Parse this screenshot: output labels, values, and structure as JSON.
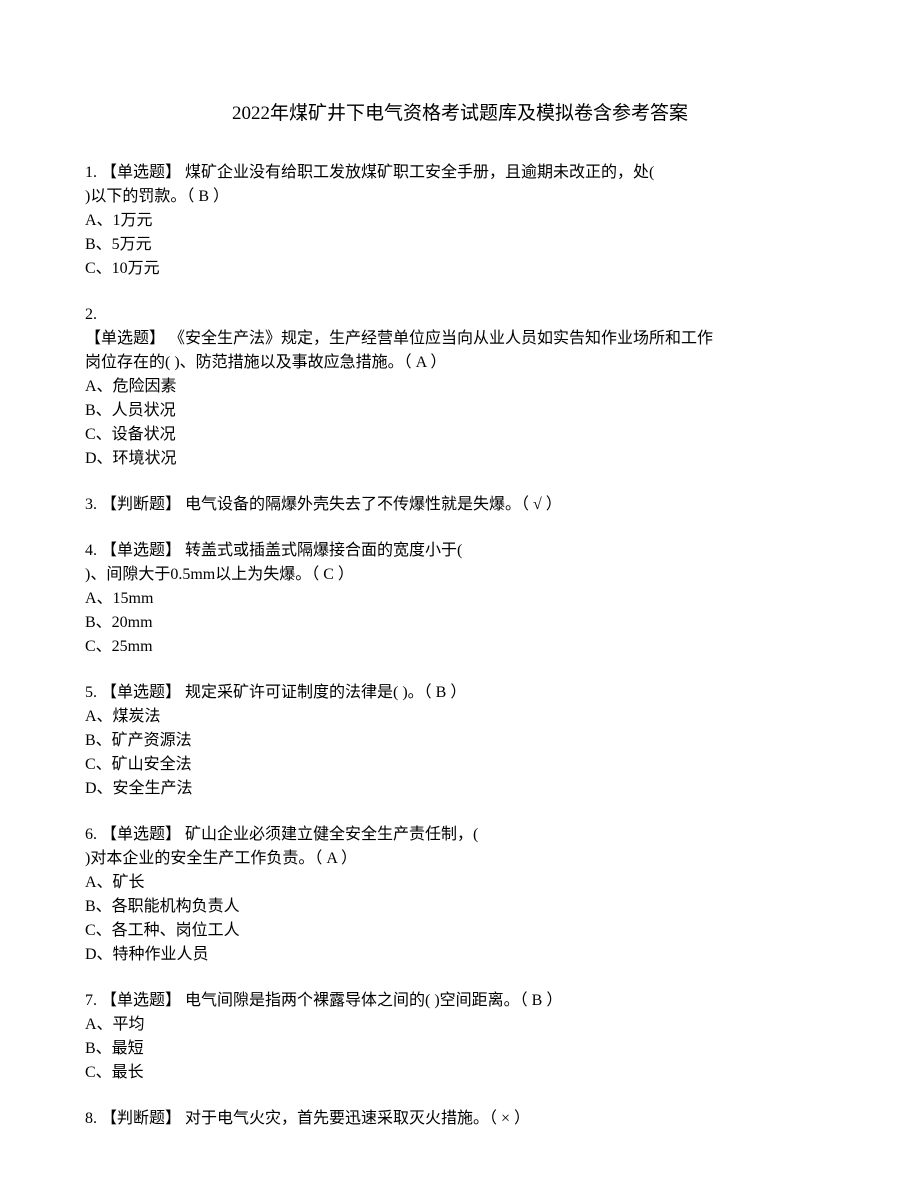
{
  "title": "2022年煤矿井下电气资格考试题库及模拟卷含参考答案",
  "questions": [
    {
      "num": "1.",
      "type": "【单选题】",
      "text_lines": [
        "煤矿企业没有给职工发放煤矿职工安全手册，且逾期未改正的，处(",
        ")以下的罚款。（  B  ）"
      ],
      "options": [
        "A、1万元",
        "B、5万元",
        "C、10万元"
      ]
    },
    {
      "num": "2.",
      "type": "【单选题】",
      "text_lines_pre": [
        "《安全生产法》规定，生产经营单位应当向从业人员如实告知作业场所和工作",
        "岗位存在的( )、防范措施以及事故应急措施。（  A  ）"
      ],
      "options": [
        "A、危险因素",
        "B、人员状况",
        "C、设备状况",
        "D、环境状况"
      ]
    },
    {
      "num": "3.",
      "type": "【判断题】",
      "text_lines": [
        "电气设备的隔爆外壳失去了不传爆性就是失爆。（   √   ）"
      ],
      "options": []
    },
    {
      "num": "4.",
      "type": "【单选题】",
      "text_lines": [
        "转盖式或插盖式隔爆接合面的宽度小于(",
        ")、间隙大于0.5mm以上为失爆。（  C  ）"
      ],
      "options": [
        "A、15mm",
        "B、20mm",
        "C、25mm"
      ]
    },
    {
      "num": "5.",
      "type": "【单选题】",
      "text_lines": [
        "规定采矿许可证制度的法律是( )。（  B  ）"
      ],
      "options": [
        "A、煤炭法",
        "B、矿产资源法",
        "C、矿山安全法",
        "D、安全生产法"
      ]
    },
    {
      "num": "6.",
      "type": "【单选题】",
      "text_lines": [
        "矿山企业必须建立健全安全生产责任制，(",
        ")对本企业的安全生产工作负责。（  A  ）"
      ],
      "options": [
        "A、矿长",
        "B、各职能机构负责人",
        "C、各工种、岗位工人",
        "D、特种作业人员"
      ]
    },
    {
      "num": "7.",
      "type": "【单选题】",
      "text_lines": [
        "电气间隙是指两个裸露导体之间的( )空间距离。（  B  ）"
      ],
      "options": [
        "A、平均",
        "B、最短",
        "C、最长"
      ]
    },
    {
      "num": "8.",
      "type": "【判断题】",
      "text_lines": [
        "对于电气火灾，首先要迅速采取灭火措施。（  ×  ）"
      ],
      "options": []
    }
  ]
}
